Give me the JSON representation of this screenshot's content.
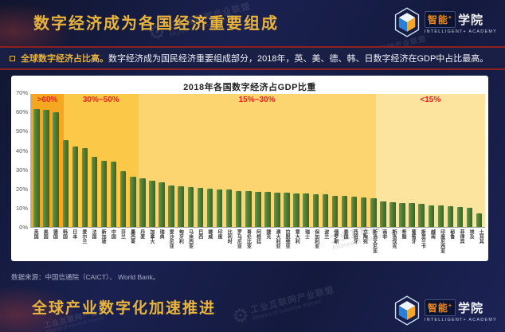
{
  "header": {
    "title": "数字经济成为各国经济重要组成"
  },
  "logo": {
    "zh_badge": "智能",
    "plus": "+",
    "zh_rest": "学院",
    "subtitle": "INTELLIGENT+  ACADEMY"
  },
  "banner": {
    "highlight": "全球数字经济占比高。",
    "text": "数字经济成为国民经济重要组成部分，2018年，英、美、德、韩、日数字经济在GDP中占比最高。"
  },
  "chart_data": {
    "type": "bar",
    "title": "2018年各国数字经济占GDP比重",
    "xlabel": "",
    "ylabel": "",
    "ylim": [
      0,
      70
    ],
    "grid": false,
    "legend": "none",
    "bar_color": "#507d33",
    "y_ticks": [
      "70%",
      "60%",
      "50%",
      "40%",
      "30%",
      "20%",
      "10%",
      "0%"
    ],
    "zones": [
      {
        "label": ">60%",
        "width_pct": 7.2,
        "color": "#f6a722"
      },
      {
        "label": "30%~50%",
        "width_pct": 16.4,
        "color": "#fbc847"
      },
      {
        "label": "15%~30%",
        "width_pct": 52.3,
        "color": "#fcd470"
      },
      {
        "label": "<15%",
        "width_pct": 24.1,
        "color": "#fce49e"
      }
    ],
    "categories": [
      "英国",
      "美国",
      "德国",
      "韩国",
      "日本",
      "爱尔兰",
      "法国",
      "新加坡",
      "中国",
      "芬兰",
      "墨西哥",
      "丹麦",
      "加拿大",
      "瑞典",
      "爱沙尼亚",
      "匈牙利",
      "马来西亚",
      "巴西",
      "挪威",
      "印度",
      "比利时",
      "罗马尼亚",
      "哥伦比亚",
      "阿根廷",
      "捷克",
      "澳大利亚",
      "拉脱维亚",
      "意大利",
      "瑞士",
      "保加利亚",
      "波兰",
      "俄罗斯",
      "泰国",
      "西班牙",
      "立陶宛",
      "斯洛文尼亚",
      "南非",
      "斯洛伐克",
      "希腊",
      "葡萄牙",
      "斯里兰卡",
      "越南",
      "印度尼西亚",
      "秘鲁",
      "菲律宾",
      "埃及",
      "土耳其"
    ],
    "values": [
      62,
      61.5,
      60.5,
      45.5,
      42.5,
      41.5,
      37,
      35,
      34.5,
      29.5,
      26.5,
      25.5,
      24.5,
      23.5,
      22,
      21.5,
      21,
      20.5,
      20,
      19.5,
      19.5,
      19,
      19,
      18.5,
      18.5,
      18,
      18,
      17.5,
      17.5,
      17,
      17,
      16.5,
      16.5,
      16,
      15.5,
      15,
      13.5,
      13,
      12.5,
      12.5,
      12,
      11.5,
      11.5,
      11,
      10.5,
      10,
      7
    ]
  },
  "source": "数据来源：中国信通院（CAICT）、 World Bank。",
  "footer": {
    "title": "全球产业数字化加速推进"
  },
  "watermark": {
    "gear": "⚙",
    "zh": "工业互联网产业联盟",
    "en": "Alliance of Industrial Internet"
  }
}
